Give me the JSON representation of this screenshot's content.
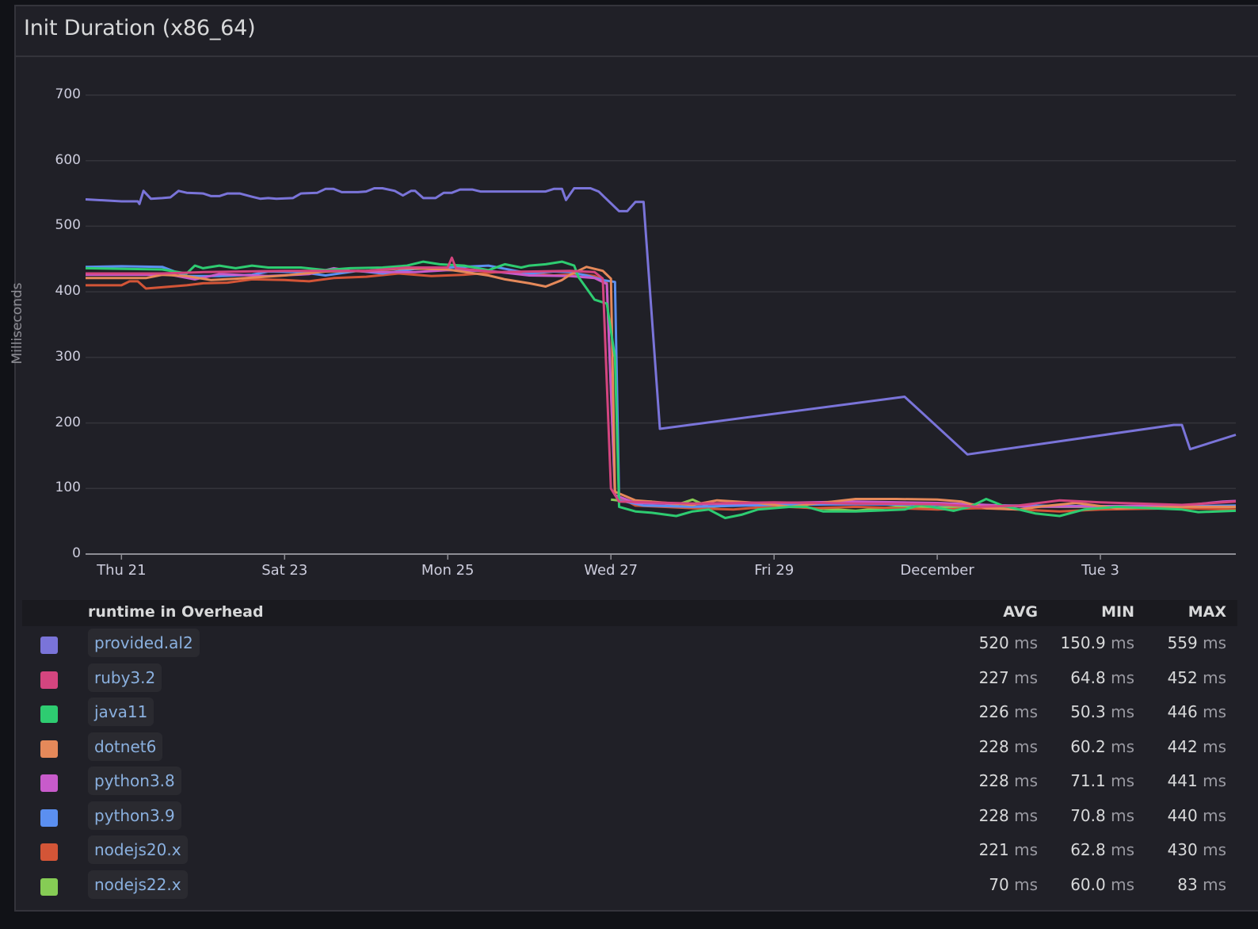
{
  "panel": {
    "title": "Init Duration (x86_64)",
    "y_axis_label": "Milliseconds"
  },
  "legend": {
    "header": {
      "name": "runtime in Overhead",
      "avg": "AVG",
      "min": "MIN",
      "max": "MAX"
    },
    "unit": "ms",
    "rows": [
      {
        "name": "provided.al2",
        "color": "#7a74d9",
        "avg": "520",
        "min": "150.9",
        "max": "559"
      },
      {
        "name": "ruby3.2",
        "color": "#d4457f",
        "avg": "227",
        "min": "64.8",
        "max": "452"
      },
      {
        "name": "java11",
        "color": "#2ecc71",
        "avg": "226",
        "min": "50.3",
        "max": "446"
      },
      {
        "name": "dotnet6",
        "color": "#e5895a",
        "avg": "228",
        "min": "60.2",
        "max": "442"
      },
      {
        "name": "python3.8",
        "color": "#c85bcb",
        "avg": "228",
        "min": "71.1",
        "max": "441"
      },
      {
        "name": "python3.9",
        "color": "#5b8ff0",
        "avg": "228",
        "min": "70.8",
        "max": "440"
      },
      {
        "name": "nodejs20.x",
        "color": "#d35537",
        "avg": "221",
        "min": "62.8",
        "max": "430"
      },
      {
        "name": "nodejs22.x",
        "color": "#86cc55",
        "avg": "70",
        "min": "60.0",
        "max": "83"
      }
    ]
  },
  "chart_data": {
    "type": "line",
    "title": "Init Duration (x86_64)",
    "xlabel": "",
    "ylabel": "Milliseconds",
    "ylim": [
      0,
      700
    ],
    "yticks": [
      0,
      100,
      200,
      300,
      400,
      500,
      600,
      700
    ],
    "xticks": [
      "Thu 21",
      "Sat 23",
      "Mon 25",
      "Wed 27",
      "Fri 29",
      "December",
      "Tue 3"
    ],
    "x_unit": "days since Thu 21 (Thu 21 = 0)",
    "x_range": [
      -0.44,
      13.66
    ],
    "grid": true,
    "legend_position": "bottom-table",
    "series": [
      {
        "name": "provided.al2",
        "color": "#7a74d9",
        "points": [
          [
            -0.44,
            541
          ],
          [
            0.0,
            538
          ],
          [
            0.2,
            538
          ],
          [
            0.22,
            534
          ],
          [
            0.27,
            554
          ],
          [
            0.36,
            542
          ],
          [
            0.5,
            543
          ],
          [
            0.6,
            544
          ],
          [
            0.7,
            554
          ],
          [
            0.8,
            551
          ],
          [
            1.0,
            550
          ],
          [
            1.1,
            546
          ],
          [
            1.2,
            546
          ],
          [
            1.3,
            550
          ],
          [
            1.45,
            550
          ],
          [
            1.6,
            545
          ],
          [
            1.7,
            542
          ],
          [
            1.8,
            543
          ],
          [
            1.9,
            542
          ],
          [
            2.1,
            543
          ],
          [
            2.2,
            550
          ],
          [
            2.4,
            551
          ],
          [
            2.5,
            557
          ],
          [
            2.6,
            557
          ],
          [
            2.7,
            552
          ],
          [
            2.9,
            552
          ],
          [
            3.0,
            553
          ],
          [
            3.1,
            558
          ],
          [
            3.2,
            558
          ],
          [
            3.35,
            554
          ],
          [
            3.45,
            547
          ],
          [
            3.55,
            554
          ],
          [
            3.6,
            554
          ],
          [
            3.7,
            543
          ],
          [
            3.85,
            543
          ],
          [
            3.95,
            551
          ],
          [
            4.05,
            551
          ],
          [
            4.15,
            556
          ],
          [
            4.3,
            556
          ],
          [
            4.4,
            553
          ],
          [
            5.0,
            553
          ],
          [
            5.2,
            553
          ],
          [
            5.3,
            557
          ],
          [
            5.4,
            557
          ],
          [
            5.45,
            540
          ],
          [
            5.55,
            558
          ],
          [
            5.75,
            558
          ],
          [
            5.85,
            553
          ],
          [
            6.0,
            535
          ],
          [
            6.1,
            523
          ],
          [
            6.2,
            523
          ],
          [
            6.3,
            537
          ],
          [
            6.4,
            537
          ],
          [
            6.6,
            191
          ],
          [
            9.6,
            240
          ],
          [
            10.37,
            152
          ],
          [
            12.9,
            197
          ],
          [
            13.0,
            197
          ],
          [
            13.1,
            160
          ],
          [
            13.66,
            182
          ]
        ]
      },
      {
        "name": "ruby3.2",
        "color": "#d4457f",
        "points": [
          [
            -0.44,
            428
          ],
          [
            0.5,
            428
          ],
          [
            1.0,
            430
          ],
          [
            2.0,
            432
          ],
          [
            3.0,
            432
          ],
          [
            3.5,
            437
          ],
          [
            4.0,
            437
          ],
          [
            4.05,
            452
          ],
          [
            4.1,
            436
          ],
          [
            4.6,
            430
          ],
          [
            5.5,
            432
          ],
          [
            5.8,
            430
          ],
          [
            5.9,
            420
          ],
          [
            6.0,
            100
          ],
          [
            6.1,
            80
          ],
          [
            7.0,
            77
          ],
          [
            8.0,
            79
          ],
          [
            9.0,
            77
          ],
          [
            10.0,
            76
          ],
          [
            10.5,
            72
          ],
          [
            11.0,
            74
          ],
          [
            11.5,
            82
          ],
          [
            12.0,
            79
          ],
          [
            13.0,
            75
          ],
          [
            13.66,
            80
          ]
        ]
      },
      {
        "name": "java11",
        "color": "#2ecc71",
        "points": [
          [
            -0.44,
            436
          ],
          [
            0.5,
            434
          ],
          [
            0.8,
            428
          ],
          [
            0.9,
            440
          ],
          [
            1.0,
            436
          ],
          [
            1.2,
            440
          ],
          [
            1.4,
            436
          ],
          [
            1.6,
            440
          ],
          [
            1.8,
            437
          ],
          [
            2.2,
            437
          ],
          [
            2.5,
            433
          ],
          [
            2.8,
            436
          ],
          [
            3.2,
            437
          ],
          [
            3.5,
            440
          ],
          [
            3.7,
            446
          ],
          [
            3.9,
            442
          ],
          [
            4.2,
            440
          ],
          [
            4.5,
            433
          ],
          [
            4.7,
            442
          ],
          [
            4.9,
            437
          ],
          [
            5.0,
            440
          ],
          [
            5.2,
            442
          ],
          [
            5.4,
            446
          ],
          [
            5.55,
            440
          ],
          [
            5.6,
            423
          ],
          [
            5.8,
            388
          ],
          [
            5.95,
            382
          ],
          [
            6.05,
            300
          ],
          [
            6.1,
            72
          ],
          [
            6.3,
            65
          ],
          [
            6.5,
            63
          ],
          [
            6.8,
            58
          ],
          [
            7.0,
            65
          ],
          [
            7.2,
            68
          ],
          [
            7.4,
            55
          ],
          [
            7.6,
            60
          ],
          [
            7.8,
            68
          ],
          [
            8.2,
            72
          ],
          [
            8.4,
            72
          ],
          [
            8.6,
            65
          ],
          [
            9.0,
            65
          ],
          [
            9.4,
            67
          ],
          [
            9.6,
            68
          ],
          [
            9.8,
            75
          ],
          [
            10.2,
            66
          ],
          [
            10.4,
            72
          ],
          [
            10.6,
            84
          ],
          [
            10.8,
            74
          ],
          [
            11.2,
            62
          ],
          [
            11.5,
            58
          ],
          [
            11.8,
            68
          ],
          [
            12.2,
            72
          ],
          [
            13.0,
            68
          ],
          [
            13.2,
            64
          ],
          [
            13.66,
            66
          ]
        ]
      },
      {
        "name": "dotnet6",
        "color": "#e5895a",
        "points": [
          [
            -0.44,
            421
          ],
          [
            0.3,
            421
          ],
          [
            0.5,
            426
          ],
          [
            0.8,
            424
          ],
          [
            1.1,
            418
          ],
          [
            1.4,
            420
          ],
          [
            2.0,
            425
          ],
          [
            2.5,
            431
          ],
          [
            3.0,
            432
          ],
          [
            3.5,
            436
          ],
          [
            4.0,
            434
          ],
          [
            4.5,
            425
          ],
          [
            4.7,
            419
          ],
          [
            5.0,
            413
          ],
          [
            5.2,
            408
          ],
          [
            5.4,
            418
          ],
          [
            5.5,
            426
          ],
          [
            5.7,
            438
          ],
          [
            5.9,
            432
          ],
          [
            6.0,
            420
          ],
          [
            6.05,
            95
          ],
          [
            6.3,
            82
          ],
          [
            7.0,
            75
          ],
          [
            7.3,
            82
          ],
          [
            7.8,
            78
          ],
          [
            8.2,
            72
          ],
          [
            8.5,
            77
          ],
          [
            9.0,
            84
          ],
          [
            9.5,
            84
          ],
          [
            10.0,
            83
          ],
          [
            10.3,
            80
          ],
          [
            10.6,
            70
          ],
          [
            11.0,
            68
          ],
          [
            11.3,
            73
          ],
          [
            11.7,
            78
          ],
          [
            12.2,
            70
          ],
          [
            13.0,
            72
          ],
          [
            13.66,
            72
          ]
        ]
      },
      {
        "name": "python3.8",
        "color": "#c85bcb",
        "points": [
          [
            -0.44,
            426
          ],
          [
            0.6,
            426
          ],
          [
            0.9,
            419
          ],
          [
            1.2,
            427
          ],
          [
            1.8,
            424
          ],
          [
            2.3,
            427
          ],
          [
            2.6,
            436
          ],
          [
            2.8,
            432
          ],
          [
            3.2,
            430
          ],
          [
            3.6,
            430
          ],
          [
            4.0,
            433
          ],
          [
            4.5,
            432
          ],
          [
            5.0,
            425
          ],
          [
            5.5,
            424
          ],
          [
            5.8,
            421
          ],
          [
            5.95,
            412
          ],
          [
            6.05,
            90
          ],
          [
            6.3,
            78
          ],
          [
            7.0,
            76
          ],
          [
            8.0,
            78
          ],
          [
            9.0,
            80
          ],
          [
            10.0,
            78
          ],
          [
            10.8,
            74
          ],
          [
            11.2,
            72
          ],
          [
            12.0,
            73
          ],
          [
            13.0,
            74
          ],
          [
            13.5,
            80
          ],
          [
            13.66,
            81
          ]
        ]
      },
      {
        "name": "python3.9",
        "color": "#5b8ff0",
        "points": [
          [
            -0.44,
            438
          ],
          [
            0.0,
            439
          ],
          [
            0.5,
            438
          ],
          [
            0.8,
            424
          ],
          [
            1.2,
            424
          ],
          [
            1.6,
            426
          ],
          [
            1.8,
            431
          ],
          [
            2.2,
            430
          ],
          [
            2.5,
            425
          ],
          [
            2.9,
            432
          ],
          [
            3.2,
            428
          ],
          [
            3.6,
            435
          ],
          [
            4.0,
            437
          ],
          [
            4.5,
            440
          ],
          [
            5.0,
            428
          ],
          [
            5.3,
            431
          ],
          [
            5.5,
            430
          ],
          [
            5.7,
            425
          ],
          [
            5.9,
            418
          ],
          [
            6.05,
            415
          ],
          [
            6.1,
            82
          ],
          [
            6.4,
            74
          ],
          [
            7.0,
            72
          ],
          [
            8.0,
            75
          ],
          [
            9.0,
            76
          ],
          [
            10.0,
            75
          ],
          [
            11.0,
            74
          ],
          [
            12.0,
            73
          ],
          [
            13.0,
            73
          ],
          [
            13.66,
            74
          ]
        ]
      },
      {
        "name": "nodejs20.x",
        "color": "#d35537",
        "points": [
          [
            -0.44,
            410
          ],
          [
            0.0,
            410
          ],
          [
            0.1,
            416
          ],
          [
            0.2,
            416
          ],
          [
            0.3,
            405
          ],
          [
            0.5,
            407
          ],
          [
            0.8,
            410
          ],
          [
            1.0,
            413
          ],
          [
            1.3,
            414
          ],
          [
            1.6,
            419
          ],
          [
            2.0,
            418
          ],
          [
            2.3,
            416
          ],
          [
            2.6,
            421
          ],
          [
            3.0,
            423
          ],
          [
            3.4,
            428
          ],
          [
            3.8,
            424
          ],
          [
            4.2,
            426
          ],
          [
            4.6,
            430
          ],
          [
            5.0,
            428
          ],
          [
            5.3,
            425
          ],
          [
            5.6,
            427
          ],
          [
            5.8,
            424
          ],
          [
            5.95,
            415
          ],
          [
            6.05,
            90
          ],
          [
            6.3,
            74
          ],
          [
            7.0,
            70
          ],
          [
            7.5,
            68
          ],
          [
            8.0,
            73
          ],
          [
            8.5,
            70
          ],
          [
            9.0,
            72
          ],
          [
            9.5,
            70
          ],
          [
            10.0,
            68
          ],
          [
            10.5,
            70
          ],
          [
            11.0,
            68
          ],
          [
            11.5,
            65
          ],
          [
            12.0,
            68
          ],
          [
            13.0,
            70
          ],
          [
            13.66,
            68
          ]
        ]
      },
      {
        "name": "nodejs22.x",
        "color": "#86cc55",
        "points": [
          [
            6.0,
            83
          ],
          [
            6.2,
            80
          ],
          [
            6.5,
            80
          ],
          [
            6.8,
            75
          ],
          [
            7.0,
            83
          ],
          [
            7.2,
            72
          ],
          [
            7.6,
            75
          ],
          [
            8.0,
            74
          ],
          [
            8.5,
            70
          ],
          [
            9.0,
            66
          ],
          [
            9.5,
            72
          ],
          [
            10.0,
            71
          ],
          [
            10.5,
            72
          ],
          [
            11.0,
            73
          ],
          [
            11.5,
            72
          ],
          [
            12.0,
            72
          ],
          [
            12.5,
            70
          ],
          [
            13.0,
            70
          ],
          [
            13.66,
            72
          ]
        ]
      }
    ]
  }
}
